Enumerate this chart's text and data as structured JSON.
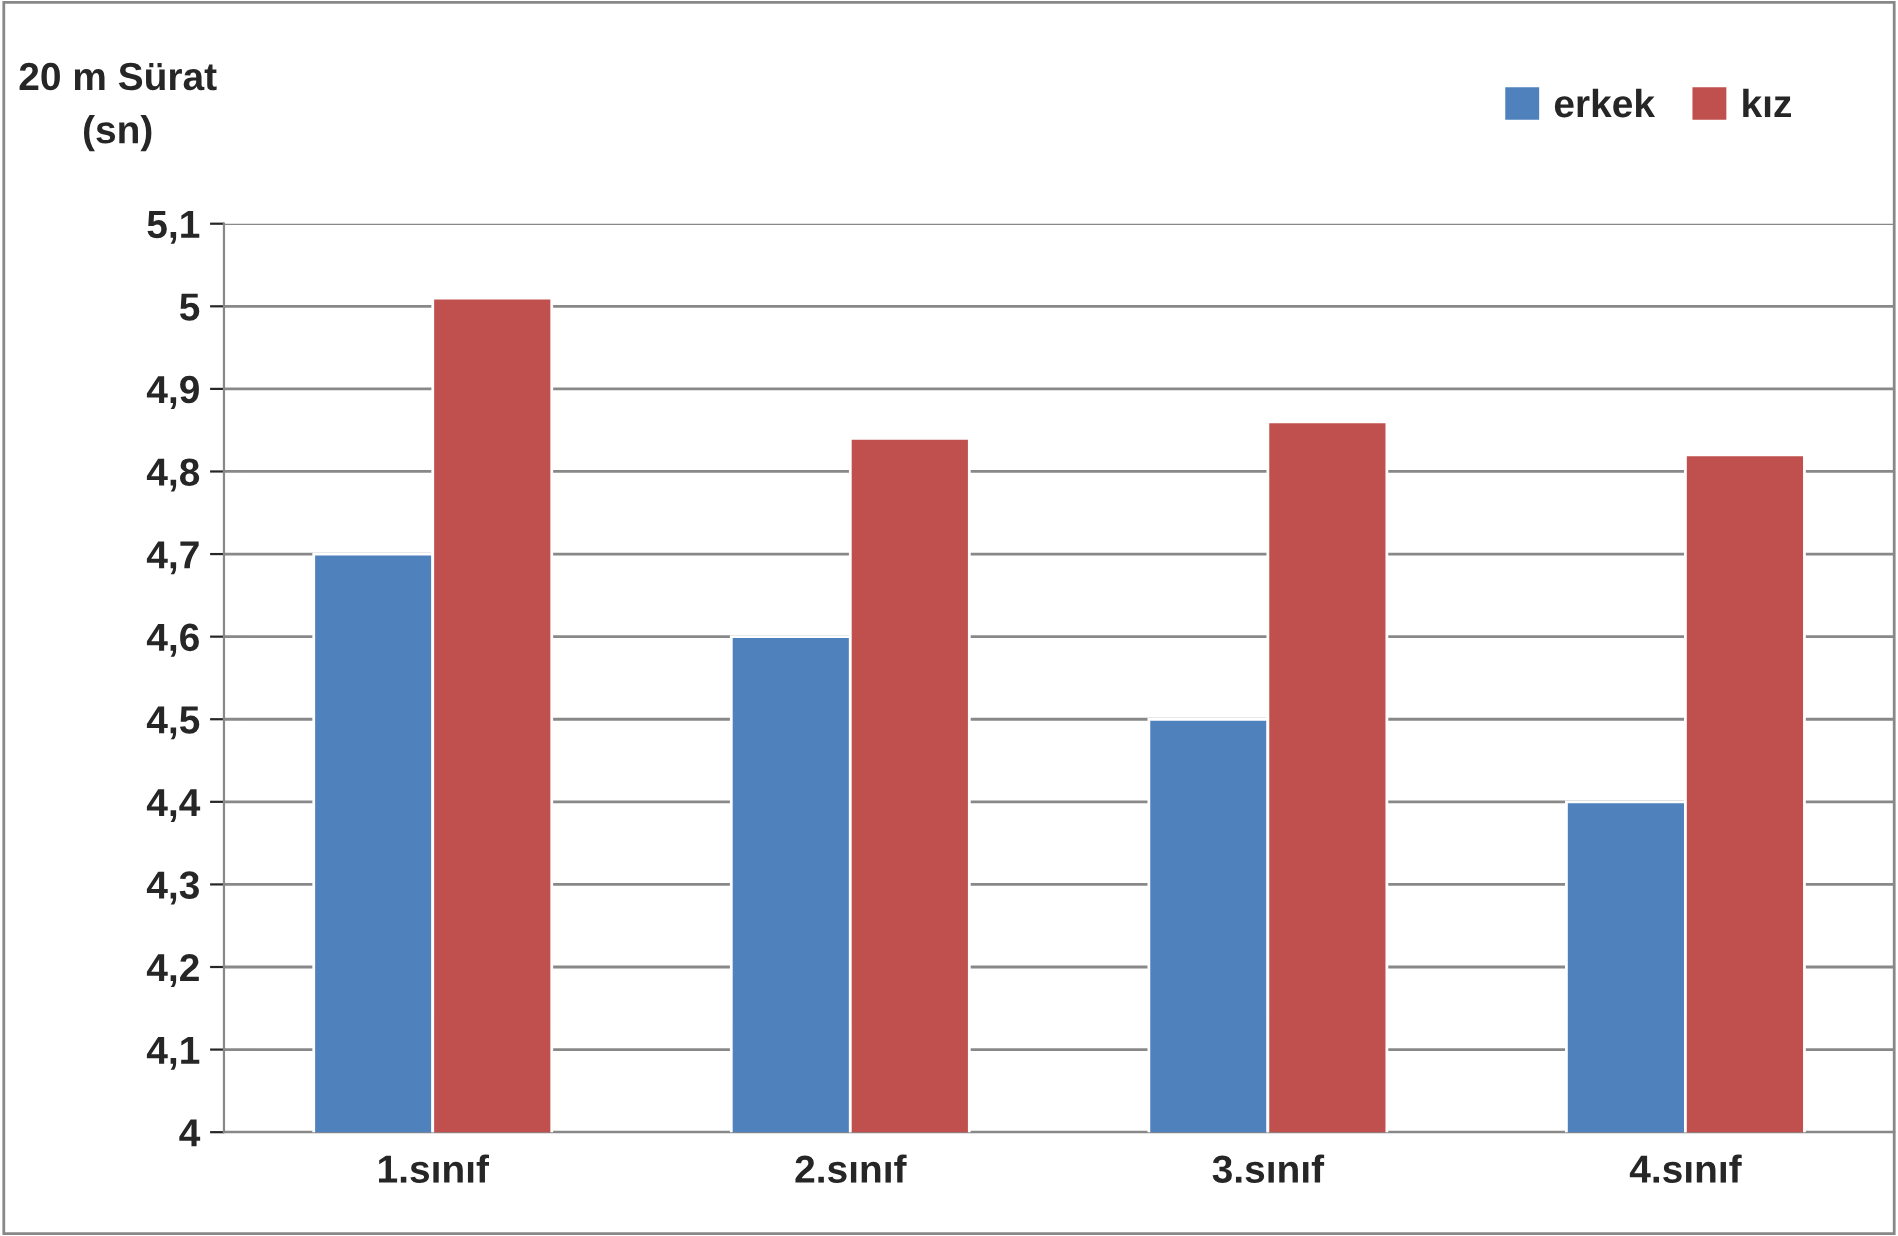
{
  "chart_data": {
    "type": "bar",
    "ylabel": "20 m Sürat\n(sn)",
    "categories": [
      "1.sınıf",
      "2.sınıf",
      "3.sınıf",
      "4.sınıf"
    ],
    "series": [
      {
        "name": "erkek",
        "color": "#4f81bd",
        "values": [
          4.7,
          4.6,
          4.5,
          4.4
        ]
      },
      {
        "name": "kız",
        "color": "#c0504d",
        "values": [
          5.01,
          4.84,
          4.86,
          4.82
        ]
      }
    ],
    "ylim": [
      4,
      5.1
    ],
    "yticks": [
      4,
      {
        "value": 4.1,
        "label": "4,1"
      },
      {
        "value": 4.2,
        "label": "4,2"
      },
      {
        "value": 4.3,
        "label": "4,3"
      },
      {
        "value": 4.4,
        "label": "4,4"
      },
      {
        "value": 4.5,
        "label": "4,5"
      },
      {
        "value": 4.6,
        "label": "4,6"
      },
      {
        "value": 4.7,
        "label": "4,7"
      },
      {
        "value": 4.8,
        "label": "4,8"
      },
      {
        "value": 4.9,
        "label": "4,9"
      },
      5,
      {
        "value": 5.1,
        "label": "5,1"
      }
    ],
    "grid": "y",
    "legend": "top right"
  }
}
